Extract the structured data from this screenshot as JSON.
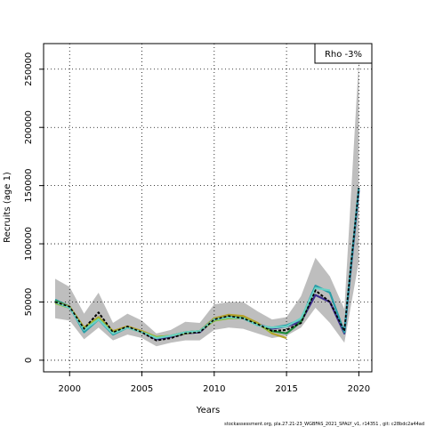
{
  "chart_data": {
    "type": "line",
    "xlabel": "Years",
    "ylabel": "Recruits (age 1)",
    "xlim": [
      1998.2,
      2020.9
    ],
    "ylim": [
      -10000,
      272000
    ],
    "x_ticks": [
      2000,
      2005,
      2010,
      2015,
      2020
    ],
    "y_ticks": [
      0,
      50000,
      100000,
      150000,
      200000,
      250000
    ],
    "grid": true,
    "annotation": "Rho -3%",
    "annotation_position": "top-right",
    "confidence_band": {
      "color": "#bebebe",
      "x": [
        1999,
        2000,
        2001,
        2002,
        2003,
        2004,
        2005,
        2006,
        2007,
        2008,
        2009,
        2010,
        2011,
        2012,
        2013,
        2014,
        2015,
        2016,
        2017,
        2018,
        2019,
        2020
      ],
      "upper": [
        70000,
        63000,
        40000,
        58000,
        32000,
        40000,
        34000,
        23000,
        26000,
        33000,
        32000,
        48000,
        50000,
        50000,
        42000,
        35000,
        37000,
        55000,
        88000,
        72000,
        44000,
        258000
      ],
      "lower": [
        36000,
        34000,
        18000,
        28000,
        17000,
        22000,
        19000,
        12000,
        15000,
        17000,
        17000,
        26000,
        28000,
        27000,
        23000,
        19000,
        21000,
        28000,
        45000,
        32000,
        15000,
        85000
      ]
    },
    "series": [
      {
        "color": "#000000",
        "dashed": true,
        "values": [
          50000,
          46000,
          27000,
          41000,
          24000,
          29000,
          24000,
          17000,
          19000,
          23000,
          24000,
          35000,
          38000,
          36000,
          31000,
          25000,
          26000,
          32000,
          60000,
          50000,
          25000,
          148000
        ]
      },
      {
        "color": "#3c2b8c",
        "values": [
          51000,
          45000,
          26000,
          37000,
          23000,
          29000,
          24000,
          18000,
          20000,
          23000,
          24000,
          35000,
          37000,
          36000,
          31000,
          27000,
          29000,
          33000,
          56000,
          50000,
          23000,
          146000
        ]
      },
      {
        "color": "#2a9fa8",
        "values": [
          52000,
          46000,
          24000,
          35000,
          22000,
          28000,
          24000,
          19000,
          21000,
          24000,
          25000,
          36000,
          38000,
          36000,
          30000,
          28000,
          30000,
          35000,
          64000,
          58000,
          24000,
          148000
        ]
      },
      {
        "color": "#1e8c3c",
        "values": [
          51000,
          46000,
          27000,
          35000,
          24000,
          29000,
          24000,
          19000,
          21000,
          24000,
          25000,
          36000,
          38000,
          37000,
          31000,
          25000,
          23000,
          33000,
          62000,
          null,
          null,
          null
        ]
      },
      {
        "color": "#b5a22a",
        "values": [
          50000,
          46000,
          28000,
          37000,
          25000,
          29000,
          25000,
          20000,
          21000,
          24000,
          25000,
          36000,
          39000,
          38000,
          32000,
          23000,
          19000,
          null,
          null,
          null,
          null,
          null
        ]
      },
      {
        "color": "#8fbf3a",
        "values": [
          49000,
          45000,
          27000,
          36000,
          24000,
          28000,
          24000,
          20000,
          21000,
          23000,
          25000,
          34000,
          36000,
          36000,
          31000,
          24000,
          null,
          null,
          null,
          null,
          null,
          null
        ]
      },
      {
        "color": "#6ad1c6",
        "values": [
          50000,
          45000,
          26000,
          35000,
          23000,
          28000,
          24000,
          19000,
          21000,
          24000,
          25000,
          35000,
          37000,
          36000,
          30000,
          28000,
          29000,
          36000,
          62000,
          60000,
          null,
          null
        ]
      }
    ]
  },
  "footer": "stockassessment.org, pla.27.21-23_WGBFAS_2021_SPALY_v1, r14351 , git: c28bdc2a44ad"
}
